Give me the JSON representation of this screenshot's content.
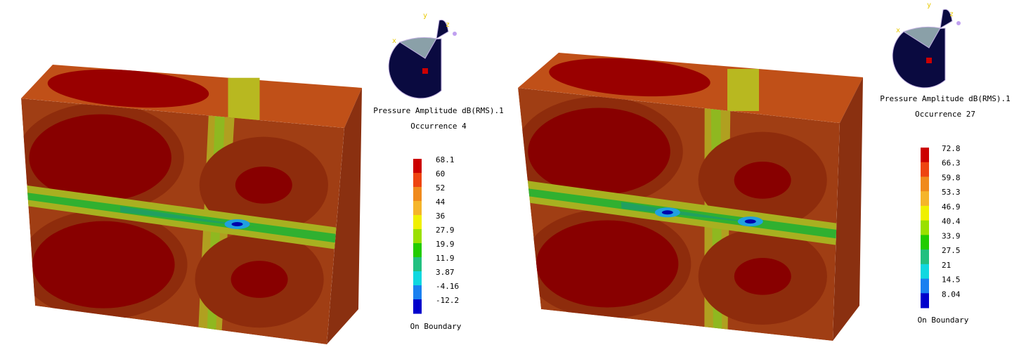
{
  "panels": [
    {
      "axes": [
        "x",
        "y",
        "z"
      ],
      "title": "Pressure Amplitude dB(RMS).1",
      "occurrence": "Occurrence 4",
      "legend_labels": [
        "68.1",
        "60",
        "52",
        "44",
        "36",
        "27.9",
        "19.9",
        "11.9",
        "3.87",
        "-4.16",
        "-12.2"
      ],
      "footer": "On Boundary"
    },
    {
      "axes": [
        "x",
        "y",
        "z"
      ],
      "title": "Pressure Amplitude dB(RMS).1",
      "occurrence": "Occurrence 27",
      "legend_labels": [
        "72.8",
        "66.3",
        "59.8",
        "53.3",
        "46.9",
        "40.4",
        "33.9",
        "27.5",
        "21",
        "14.5",
        "8.04"
      ],
      "footer": "On Boundary"
    }
  ]
}
